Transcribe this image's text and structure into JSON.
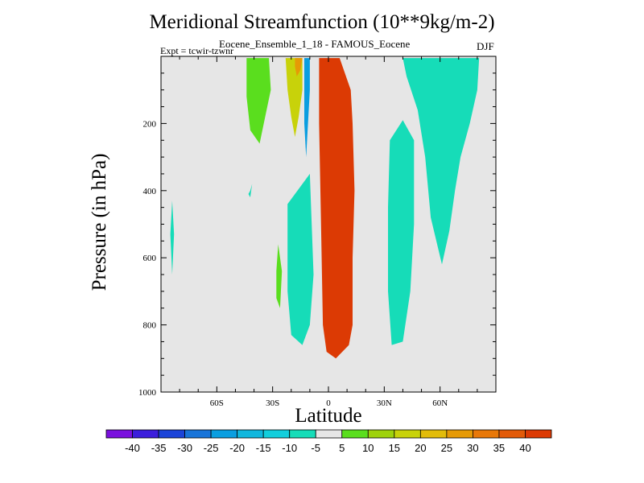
{
  "chart_data": {
    "type": "heatmap",
    "title": "Meridional Streamfunction (10**9kg/m-2)",
    "subtitle": "Eocene_Ensemble_1_18 - FAMOUS_Eocene",
    "experiment": "Expt = tcwir-tzwnr",
    "season": "DJF",
    "xlabel": "Latitude",
    "ylabel": "Pressure (in hPa)",
    "xlim": [
      -90,
      90
    ],
    "ylim": [
      1000,
      0
    ],
    "y_reversed": true,
    "x_ticks": [
      {
        "value": -60,
        "label": "60S"
      },
      {
        "value": -30,
        "label": "30S"
      },
      {
        "value": 0,
        "label": "0"
      },
      {
        "value": 30,
        "label": "30N"
      },
      {
        "value": 60,
        "label": "60N"
      }
    ],
    "y_ticks": [
      {
        "value": 200,
        "label": "200"
      },
      {
        "value": 400,
        "label": "400"
      },
      {
        "value": 600,
        "label": "600"
      },
      {
        "value": 800,
        "label": "800"
      },
      {
        "value": 1000,
        "label": "1000"
      }
    ],
    "background_color": "#e6e6e6",
    "colorbar": {
      "labels": [
        "-40",
        "-35",
        "-30",
        "-25",
        "-20",
        "-15",
        "-10",
        "-5",
        "5",
        "10",
        "15",
        "20",
        "25",
        "30",
        "35",
        "40"
      ],
      "colors": [
        "#7a10dd",
        "#3c1edc",
        "#1b44d8",
        "#1874d8",
        "#0a9ee0",
        "#10b7dd",
        "#12cedc",
        "#16dcb8",
        "#e6e6e6",
        "#5ade1e",
        "#9ed20c",
        "#c8d20a",
        "#e2bc0a",
        "#e69a06",
        "#e87808",
        "#e25a08",
        "#dc3a04"
      ]
    },
    "contour_regions": [
      {
        "level_index": 16,
        "range": "> 40",
        "points": [
          [
            -5,
            5
          ],
          [
            6,
            5
          ],
          [
            12,
            100
          ],
          [
            13,
            200
          ],
          [
            14,
            400
          ],
          [
            13,
            600
          ],
          [
            13,
            800
          ],
          [
            11,
            860
          ],
          [
            4,
            900
          ],
          [
            -1,
            880
          ],
          [
            -3,
            800
          ],
          [
            -4,
            500
          ],
          [
            -5,
            200
          ]
        ]
      },
      {
        "level_index": 9,
        "range": "5 to 10",
        "points": [
          [
            -44,
            5
          ],
          [
            -32,
            5
          ],
          [
            -31,
            100
          ],
          [
            -34,
            180
          ],
          [
            -37,
            260
          ],
          [
            -42,
            220
          ],
          [
            -44,
            120
          ]
        ]
      },
      {
        "level_index": 11,
        "range": "15 to 20",
        "points": [
          [
            -23,
            5
          ],
          [
            -14,
            5
          ],
          [
            -14,
            100
          ],
          [
            -16,
            180
          ],
          [
            -18,
            240
          ],
          [
            -20,
            180
          ],
          [
            -22,
            100
          ]
        ]
      },
      {
        "level_index": 13,
        "range": "25 to 30",
        "points": [
          [
            -18,
            5
          ],
          [
            -14,
            5
          ],
          [
            -15,
            40
          ],
          [
            -17,
            60
          ],
          [
            -18,
            30
          ]
        ]
      },
      {
        "level_index": 9,
        "range": "5 to 10",
        "points": [
          [
            -26,
            750
          ],
          [
            -25,
            640
          ],
          [
            -27,
            560
          ],
          [
            -28,
            640
          ],
          [
            -28,
            720
          ]
        ]
      },
      {
        "level_index": 7,
        "range": "-10 to -5",
        "points": [
          [
            -84,
            430
          ],
          [
            -83,
            530
          ],
          [
            -84,
            650
          ],
          [
            -85,
            530
          ]
        ]
      },
      {
        "level_index": 7,
        "range": "-10 to -5",
        "points": [
          [
            -42,
            420
          ],
          [
            -41,
            380
          ],
          [
            -42,
            400
          ],
          [
            -43,
            410
          ]
        ]
      },
      {
        "level_index": 7,
        "range": "-10 to -5",
        "points": [
          [
            -22,
            440
          ],
          [
            -10,
            350
          ],
          [
            -9,
            500
          ],
          [
            -8,
            650
          ],
          [
            -10,
            800
          ],
          [
            -14,
            860
          ],
          [
            -20,
            830
          ],
          [
            -22,
            700
          ]
        ]
      },
      {
        "level_index": 4,
        "range": "-25 to -20",
        "points": [
          [
            -13,
            5
          ],
          [
            -10,
            5
          ],
          [
            -10,
            100
          ],
          [
            -11,
            200
          ],
          [
            -12,
            300
          ],
          [
            -13,
            200
          ]
        ]
      },
      {
        "level_index": 7,
        "range": "-10 to -5",
        "points": [
          [
            40,
            5
          ],
          [
            81,
            5
          ],
          [
            80,
            100
          ],
          [
            76,
            200
          ],
          [
            71,
            300
          ],
          [
            68,
            400
          ],
          [
            65,
            520
          ],
          [
            61,
            620
          ],
          [
            55,
            480
          ],
          [
            52,
            300
          ],
          [
            48,
            160
          ],
          [
            42,
            60
          ]
        ]
      },
      {
        "level_index": 7,
        "range": "-10 to -5",
        "points": [
          [
            33,
            250
          ],
          [
            40,
            190
          ],
          [
            46,
            250
          ],
          [
            46,
            500
          ],
          [
            44,
            700
          ],
          [
            40,
            850
          ],
          [
            34,
            860
          ],
          [
            32,
            700
          ],
          [
            32,
            450
          ]
        ]
      }
    ]
  }
}
